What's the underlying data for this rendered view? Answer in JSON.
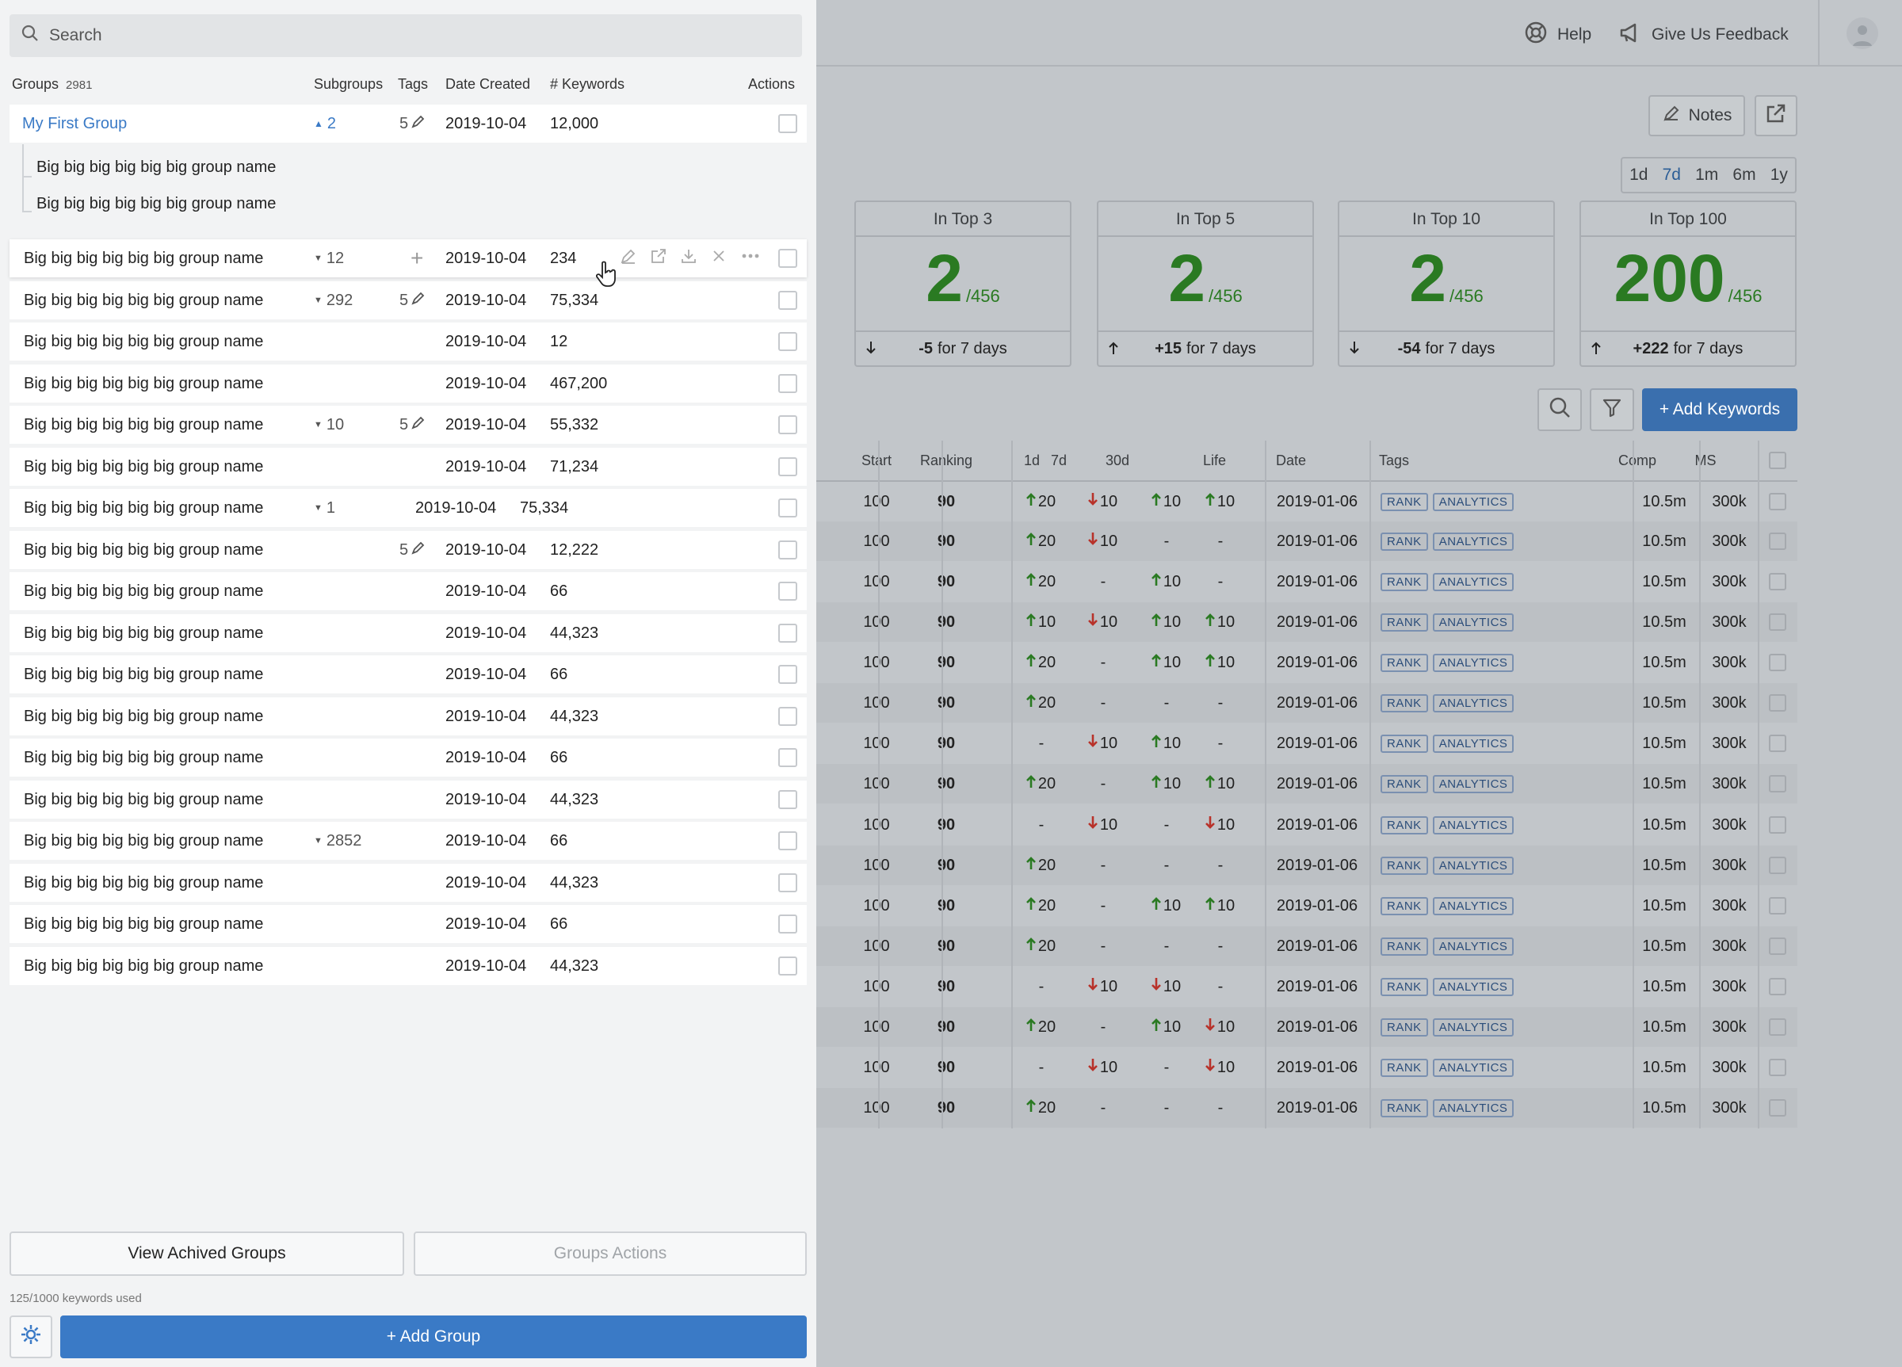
{
  "topbar": {
    "help": "Help",
    "feedback": "Give Us Feedback"
  },
  "notes_label": "Notes",
  "periods": [
    "1d",
    "7d",
    "1m",
    "6m",
    "1y"
  ],
  "active_period": "7d",
  "stats": [
    {
      "title": "In Top 3",
      "value": "2",
      "total": "/456",
      "delta": "-5",
      "suffix": "for 7 days",
      "dir": "down"
    },
    {
      "title": "In Top 5",
      "value": "2",
      "total": "/456",
      "delta": "+15",
      "suffix": "for 7 days",
      "dir": "up"
    },
    {
      "title": "In Top 10",
      "value": "2",
      "total": "/456",
      "delta": "-54",
      "suffix": "for 7 days",
      "dir": "down"
    },
    {
      "title": "In Top 100",
      "value": "200",
      "total": "/456",
      "delta": "+222",
      "suffix": "for 7 days",
      "dir": "up"
    }
  ],
  "add_keywords": "+ Add Keywords",
  "keyword_table": {
    "headers": {
      "start": "Start",
      "ranking": "Ranking",
      "d1": "1d",
      "d7": "7d",
      "d30": "30d",
      "life": "Life",
      "date": "Date",
      "tags": "Tags",
      "comp": "Comp",
      "ms": "MS"
    },
    "tag_labels": [
      "RANK",
      "ANALYTICS"
    ],
    "rows": [
      {
        "start": "100",
        "ranking": "90",
        "d1": "20",
        "d1dir": "up",
        "d7": "10",
        "d7dir": "down",
        "d30": "10",
        "d30dir": "up",
        "life": "10",
        "lifedir": "up",
        "date": "2019-01-06",
        "comp": "10.5m",
        "ms": "300k"
      },
      {
        "start": "100",
        "ranking": "90",
        "d1": "20",
        "d1dir": "up",
        "d7": "10",
        "d7dir": "down",
        "d30": "-",
        "d30dir": "",
        "life": "-",
        "lifedir": "",
        "date": "2019-01-06",
        "comp": "10.5m",
        "ms": "300k"
      },
      {
        "start": "100",
        "ranking": "90",
        "d1": "20",
        "d1dir": "up",
        "d7": "-",
        "d7dir": "",
        "d30": "10",
        "d30dir": "up",
        "life": "-",
        "lifedir": "",
        "date": "2019-01-06",
        "comp": "10.5m",
        "ms": "300k"
      },
      {
        "start": "100",
        "ranking": "90",
        "d1": "10",
        "d1dir": "up",
        "d7": "10",
        "d7dir": "down",
        "d30": "10",
        "d30dir": "up",
        "life": "10",
        "lifedir": "up",
        "date": "2019-01-06",
        "comp": "10.5m",
        "ms": "300k"
      },
      {
        "start": "100",
        "ranking": "90",
        "d1": "20",
        "d1dir": "up",
        "d7": "-",
        "d7dir": "",
        "d30": "10",
        "d30dir": "up",
        "life": "10",
        "lifedir": "up",
        "date": "2019-01-06",
        "comp": "10.5m",
        "ms": "300k"
      },
      {
        "start": "100",
        "ranking": "90",
        "d1": "20",
        "d1dir": "up",
        "d7": "-",
        "d7dir": "",
        "d30": "-",
        "d30dir": "",
        "life": "-",
        "lifedir": "",
        "date": "2019-01-06",
        "comp": "10.5m",
        "ms": "300k"
      },
      {
        "start": "100",
        "ranking": "90",
        "d1": "-",
        "d1dir": "",
        "d7": "10",
        "d7dir": "down",
        "d30": "10",
        "d30dir": "up",
        "life": "-",
        "lifedir": "",
        "date": "2019-01-06",
        "comp": "10.5m",
        "ms": "300k"
      },
      {
        "start": "100",
        "ranking": "90",
        "d1": "20",
        "d1dir": "up",
        "d7": "-",
        "d7dir": "",
        "d30": "10",
        "d30dir": "up",
        "life": "10",
        "lifedir": "up",
        "date": "2019-01-06",
        "comp": "10.5m",
        "ms": "300k"
      },
      {
        "start": "100",
        "ranking": "90",
        "d1": "-",
        "d1dir": "",
        "d7": "10",
        "d7dir": "down",
        "d30": "-",
        "d30dir": "",
        "life": "10",
        "lifedir": "down",
        "date": "2019-01-06",
        "comp": "10.5m",
        "ms": "300k"
      },
      {
        "start": "100",
        "ranking": "90",
        "d1": "20",
        "d1dir": "up",
        "d7": "-",
        "d7dir": "",
        "d30": "-",
        "d30dir": "",
        "life": "-",
        "lifedir": "",
        "date": "2019-01-06",
        "comp": "10.5m",
        "ms": "300k"
      },
      {
        "start": "100",
        "ranking": "90",
        "d1": "20",
        "d1dir": "up",
        "d7": "-",
        "d7dir": "",
        "d30": "10",
        "d30dir": "up",
        "life": "10",
        "lifedir": "up",
        "date": "2019-01-06",
        "comp": "10.5m",
        "ms": "300k"
      },
      {
        "start": "100",
        "ranking": "90",
        "d1": "20",
        "d1dir": "up",
        "d7": "-",
        "d7dir": "",
        "d30": "-",
        "d30dir": "",
        "life": "-",
        "lifedir": "",
        "date": "2019-01-06",
        "comp": "10.5m",
        "ms": "300k"
      },
      {
        "start": "100",
        "ranking": "90",
        "d1": "-",
        "d1dir": "",
        "d7": "10",
        "d7dir": "down",
        "d30": "10",
        "d30dir": "down",
        "life": "-",
        "lifedir": "",
        "date": "2019-01-06",
        "comp": "10.5m",
        "ms": "300k"
      },
      {
        "start": "100",
        "ranking": "90",
        "d1": "20",
        "d1dir": "up",
        "d7": "-",
        "d7dir": "",
        "d30": "10",
        "d30dir": "up",
        "life": "10",
        "lifedir": "down",
        "date": "2019-01-06",
        "comp": "10.5m",
        "ms": "300k"
      },
      {
        "start": "100",
        "ranking": "90",
        "d1": "-",
        "d1dir": "",
        "d7": "10",
        "d7dir": "down",
        "d30": "-",
        "d30dir": "",
        "life": "10",
        "lifedir": "down",
        "date": "2019-01-06",
        "comp": "10.5m",
        "ms": "300k"
      },
      {
        "start": "100",
        "ranking": "90",
        "d1": "20",
        "d1dir": "up",
        "d7": "-",
        "d7dir": "",
        "d30": "-",
        "d30dir": "",
        "life": "-",
        "lifedir": "",
        "date": "2019-01-06",
        "comp": "10.5m",
        "ms": "300k"
      }
    ]
  },
  "panel": {
    "search_placeholder": "Search",
    "headers": {
      "groups": "Groups",
      "count": "2981",
      "subgroups": "Subgroups",
      "tags": "Tags",
      "date": "Date Created",
      "keywords": "# Keywords",
      "actions": "Actions"
    },
    "first_group": {
      "name": "My First Group",
      "subgroups": "2",
      "tags": "5",
      "date": "2019-10-04",
      "keywords": "12,000"
    },
    "subgroup_names": [
      "Big big big big big big  group name",
      "Big big big big big big  group name"
    ],
    "groups": [
      {
        "name": "Big big big big big big  group name",
        "subgroups": "12",
        "tags": "",
        "date": "2019-10-04",
        "keywords": "234",
        "hover": true
      },
      {
        "name": "Big big big big big big  group name",
        "subgroups": "292",
        "tags": "5",
        "date": "2019-10-04",
        "keywords": "75,334"
      },
      {
        "name": "Big big big big big big  group name",
        "subgroups": "",
        "tags": "",
        "date": "2019-10-04",
        "keywords": "12"
      },
      {
        "name": "Big big big big big big  group name",
        "subgroups": "",
        "tags": "",
        "date": "2019-10-04",
        "keywords": "467,200"
      },
      {
        "name": "Big big big big big big  group name",
        "subgroups": "10",
        "tags": "5",
        "date": "2019-10-04",
        "keywords": "55,332"
      },
      {
        "name": "Big big big big big big  group name",
        "subgroups": "",
        "tags": "",
        "date": "2019-10-04",
        "keywords": "71,234"
      },
      {
        "name": "Big big big big big big  group name",
        "subgroups": "1",
        "tags": "",
        "date": "2019-10-04",
        "keywords": "75,334",
        "shifted": true
      },
      {
        "name": "Big big big big big big  group name",
        "subgroups": "",
        "tags": "5",
        "date": "2019-10-04",
        "keywords": "12,222"
      },
      {
        "name": "Big big big big big big  group name",
        "subgroups": "",
        "tags": "",
        "date": "2019-10-04",
        "keywords": "66"
      },
      {
        "name": "Big big big big big big  group name",
        "subgroups": "",
        "tags": "",
        "date": "2019-10-04",
        "keywords": "44,323"
      },
      {
        "name": "Big big big big big big  group name",
        "subgroups": "",
        "tags": "",
        "date": "2019-10-04",
        "keywords": "66"
      },
      {
        "name": "Big big big big big big  group name",
        "subgroups": "",
        "tags": "",
        "date": "2019-10-04",
        "keywords": "44,323"
      },
      {
        "name": "Big big big big big big  group name",
        "subgroups": "",
        "tags": "",
        "date": "2019-10-04",
        "keywords": "66"
      },
      {
        "name": "Big big big big big big  group name",
        "subgroups": "",
        "tags": "",
        "date": "2019-10-04",
        "keywords": "44,323"
      },
      {
        "name": "Big big big big big big  group name",
        "subgroups": "2852",
        "tags": "",
        "date": "2019-10-04",
        "keywords": "66"
      },
      {
        "name": "Big big big big big big  group name",
        "subgroups": "",
        "tags": "",
        "date": "2019-10-04",
        "keywords": "44,323"
      },
      {
        "name": "Big big big big big big  group name",
        "subgroups": "",
        "tags": "",
        "date": "2019-10-04",
        "keywords": "66"
      },
      {
        "name": "Big big big big big big  group name",
        "subgroups": "",
        "tags": "",
        "date": "2019-10-04",
        "keywords": "44,323"
      }
    ],
    "view_archived": "View Achived Groups",
    "groups_actions": "Groups Actions",
    "usage": "125/1000 keywords used",
    "add_group": "+ Add Group"
  }
}
